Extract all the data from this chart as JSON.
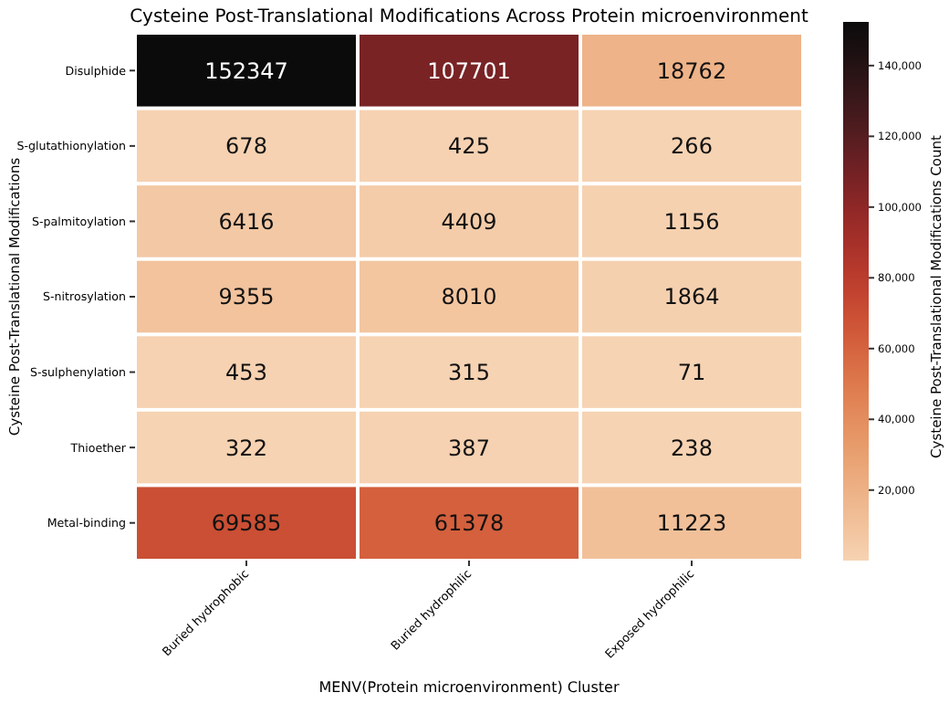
{
  "chart_data": {
    "type": "heatmap",
    "title": "Cysteine Post-Translational Modifications Across Protein microenvironment",
    "xlabel": "MENV(Protein microenvironment) Cluster",
    "ylabel": "Cysteine Post-Translational Modifications",
    "clabel": "Cysteine Post-Translational Modifications Count",
    "categories": [
      "Buried hydrophobic",
      "Buried hydrophilic",
      "Exposed hydrophilic"
    ],
    "y_categories": [
      "Disulphide",
      "S-glutathionylation",
      "S-palmitoylation",
      "S-nitrosylation",
      "S-sulphenylation",
      "Thioether",
      "Metal-binding"
    ],
    "cells": [
      [
        152347,
        107701,
        18762
      ],
      [
        678,
        425,
        266
      ],
      [
        6416,
        4409,
        1156
      ],
      [
        9355,
        8010,
        1864
      ],
      [
        453,
        315,
        71
      ],
      [
        322,
        387,
        238
      ],
      [
        69585,
        61378,
        11223
      ]
    ],
    "clim": [
      71,
      152347
    ],
    "cticks": [
      {
        "value": 20000,
        "label": "20,000"
      },
      {
        "value": 40000,
        "label": "40,000"
      },
      {
        "value": 60000,
        "label": "60,000"
      },
      {
        "value": 80000,
        "label": "80,000"
      },
      {
        "value": 100000,
        "label": "100,000"
      },
      {
        "value": 120000,
        "label": "120,000"
      },
      {
        "value": 140000,
        "label": "140,000"
      }
    ],
    "data_labels": true
  }
}
